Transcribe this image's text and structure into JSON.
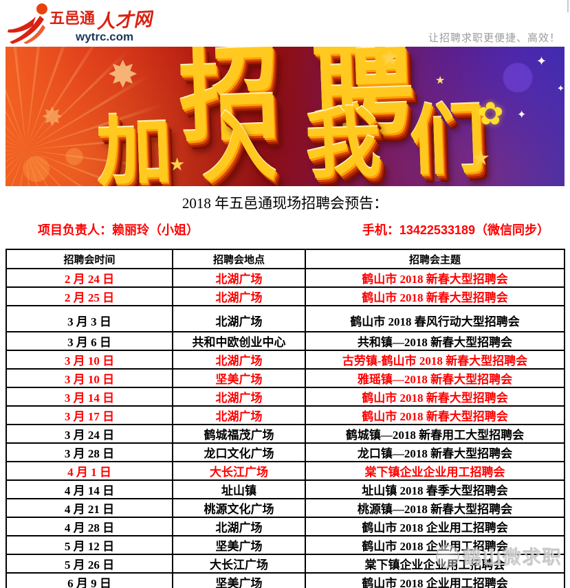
{
  "header": {
    "logo": {
      "brand_primary": "五邑通",
      "brand_secondary": "人才网",
      "domain": "wytrc.com"
    },
    "tagline": "让招聘求职更便捷、高效！"
  },
  "banner": {
    "headline": "招聘",
    "subheadline": "加入我们",
    "decorations": {
      "star": "★",
      "sparkle": "✦",
      "flower": "✿",
      "burst": "✸"
    }
  },
  "section_title": "2018 年五邑通现场招聘会预告：",
  "contact": {
    "manager": "项目负责人：赖丽玲（小姐）",
    "phone": "手机：13422533189（微信同步）"
  },
  "table": {
    "headers": [
      "招聘会时间",
      "招聘会地点",
      "招聘会主题"
    ],
    "rows": [
      {
        "date": "2 月 24 日",
        "place": "北湖广场",
        "theme": "鹤山市 2018 新春大型招聘会",
        "highlight": true
      },
      {
        "date": "2 月 25 日",
        "place": "北湖广场",
        "theme": "鹤山市 2018 新春大型招聘会",
        "highlight": true
      },
      {
        "date": "3 月 3 日",
        "place": "北湖广场",
        "theme": "鹤山市 2018 春风行动大型招聘会",
        "highlight": false,
        "tall": true
      },
      {
        "date": "3 月 6 日",
        "place": "共和中欧创业中心",
        "theme": "共和镇—2018 新春大型招聘会",
        "highlight": false
      },
      {
        "date": "3 月 10 日",
        "place": "北湖广场",
        "theme": "古劳镇-鹤山市 2018 新春大型招聘会",
        "highlight": true
      },
      {
        "date": "3 月 10 日",
        "place": "坚美广场",
        "theme": "雅瑶镇—2018 新春大型招聘会",
        "highlight": true
      },
      {
        "date": "3 月 14 日",
        "place": "北湖广场",
        "theme": "鹤山市 2018 新春大型招聘会",
        "highlight": true
      },
      {
        "date": "3 月 17 日",
        "place": "北湖广场",
        "theme": "鹤山市 2018 新春大型招聘会",
        "highlight": true
      },
      {
        "date": "3 月 24 日",
        "place": "鹤城福茂广场",
        "theme": "鹤城镇—2018 新春用工大型招聘会",
        "highlight": false
      },
      {
        "date": "3 月 28 日",
        "place": "龙口文化广场",
        "theme": "龙口镇—2018 新春大型招聘会",
        "highlight": false
      },
      {
        "date": "4 月 1 日",
        "place": "大长江广场",
        "theme": "棠下镇企业企业用工招聘会",
        "highlight": true
      },
      {
        "date": "4 月 14 日",
        "place": "址山镇",
        "theme": "址山镇 2018 春季大型招聘会",
        "highlight": false
      },
      {
        "date": "4 月 21 日",
        "place": "桃源文化广场",
        "theme": "桃源镇—2018 新春大型招聘会",
        "highlight": false
      },
      {
        "date": "4 月 28 日",
        "place": "北湖广场",
        "theme": "鹤山市 2018 企业用工招聘会",
        "highlight": false
      },
      {
        "date": "5 月 12 日",
        "place": "坚美广场",
        "theme": "鹤山市 2018 企业用工招聘会",
        "highlight": false
      },
      {
        "date": "5 月 26 日",
        "place": "大长江广场",
        "theme": "棠下镇企业企业用工招聘会",
        "highlight": false
      },
      {
        "date": "6 月 9 日",
        "place": "坚美广场",
        "theme": "鹤山市 2018 企业用工招聘会",
        "highlight": false
      }
    ]
  },
  "watermark": {
    "text": "鹤山微求职"
  },
  "colors": {
    "accent_red": "#ff0000",
    "logo_red": "#d92312",
    "logo_navy": "#17375e",
    "tagline_gray": "#9b9b9b",
    "banner_gold": "#ffc91f",
    "table_border": "#000000"
  }
}
